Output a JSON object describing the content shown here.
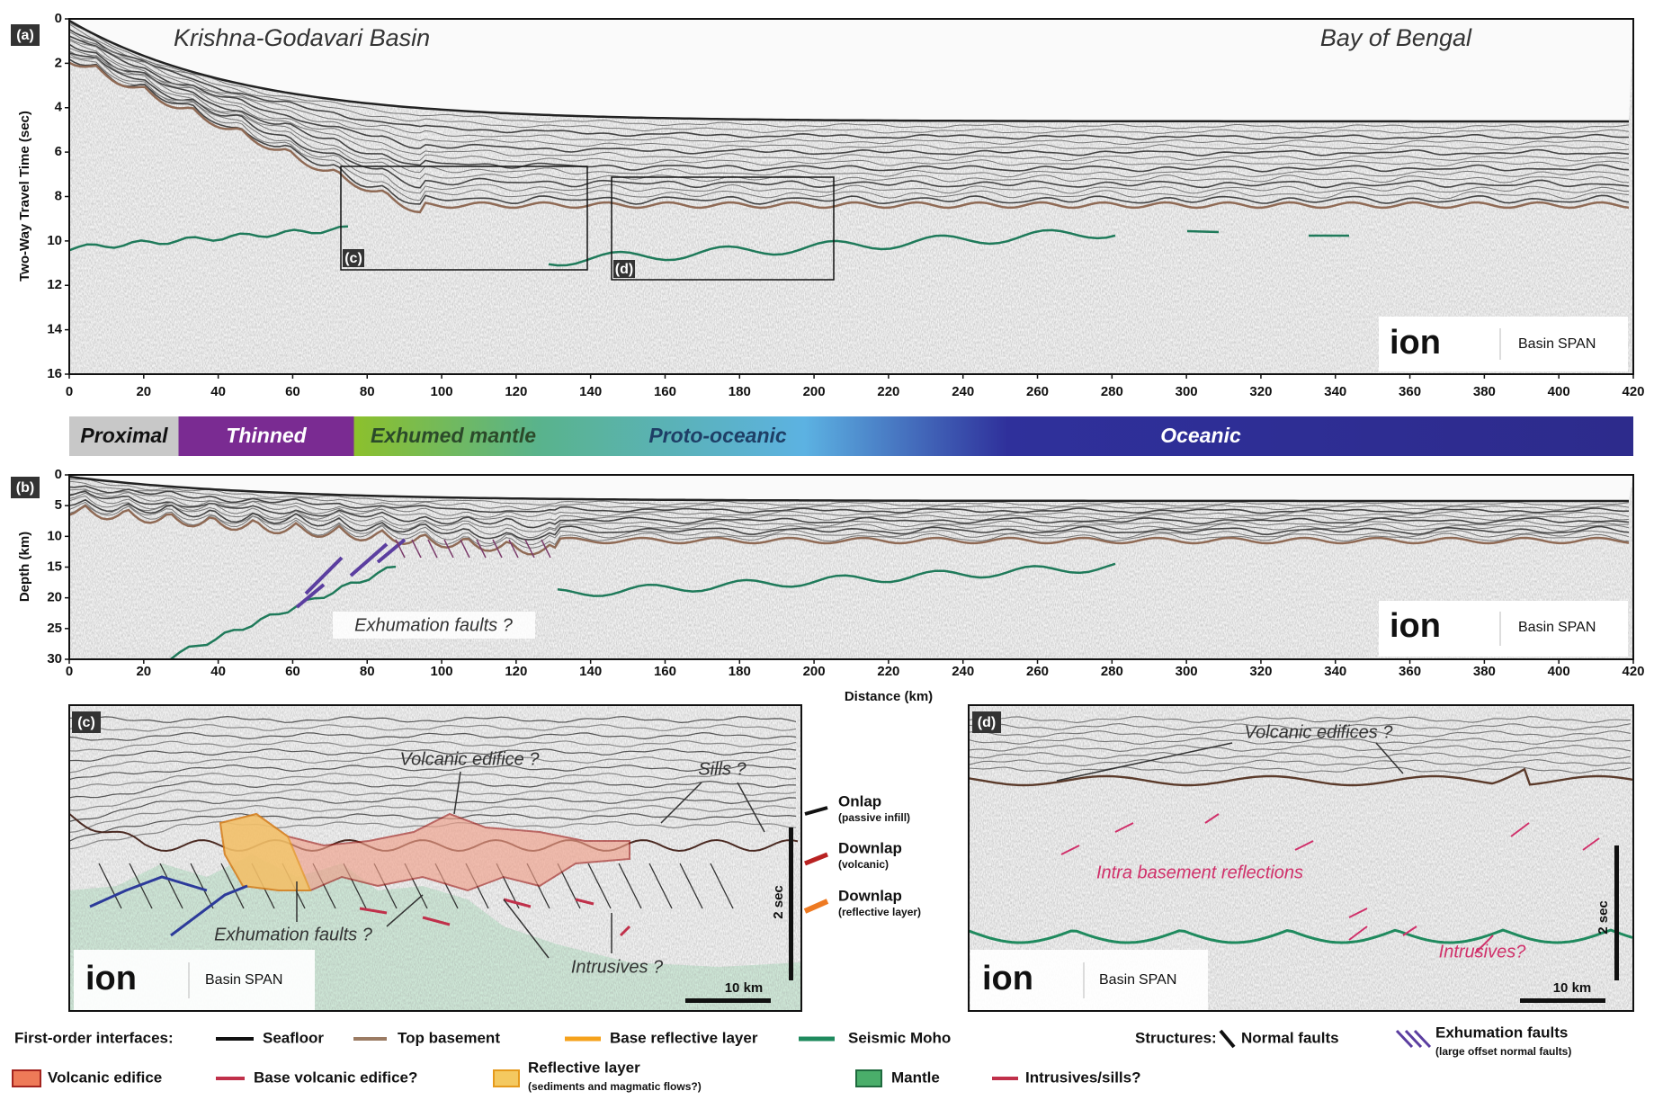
{
  "panel_a": {
    "label": "(a)",
    "left_title": "Krishna-Godavari Basin",
    "right_title": "Bay of Bengal",
    "y_axis_label": "Two-Way Travel Time (sec)",
    "y_ticks": [
      0,
      2,
      4,
      6,
      8,
      10,
      12,
      14,
      16
    ],
    "x_ticks": [
      0,
      20,
      40,
      60,
      80,
      100,
      120,
      140,
      160,
      180,
      200,
      220,
      240,
      260,
      280,
      300,
      320,
      340,
      360,
      380,
      400,
      420
    ],
    "inset_c": "(c)",
    "inset_d": "(d)",
    "logo": {
      "ion": "ion",
      "basin": "Basin",
      "span": "SPAN"
    }
  },
  "domains": [
    "Proximal",
    "Thinned",
    "Exhumed mantle",
    "Proto-oceanic",
    "Oceanic"
  ],
  "panel_b": {
    "label": "(b)",
    "y_axis_label": "Depth (km)",
    "y_ticks": [
      0,
      5,
      10,
      15,
      20,
      25,
      30
    ],
    "x_ticks": [
      0,
      20,
      40,
      60,
      80,
      100,
      120,
      140,
      160,
      180,
      200,
      220,
      240,
      260,
      280,
      300,
      320,
      340,
      360,
      380,
      400,
      420
    ],
    "x_axis_label": "Distance (km)",
    "annotation": "Exhumation faults ?",
    "logo": {
      "ion": "ion",
      "basin": "Basin",
      "span": "SPAN"
    }
  },
  "panel_c": {
    "label": "(c)",
    "annotations": [
      "Volcanic edifice ?",
      "Sills ?",
      "Exhumation faults ?",
      "Intrusives ?"
    ],
    "scale_h": "10 km",
    "scale_v": "2 sec",
    "logo": {
      "ion": "ion",
      "basin": "Basin",
      "span": "SPAN"
    }
  },
  "kinematic_notes": [
    {
      "title": "Onlap",
      "detail": "(passive infill)"
    },
    {
      "title": "Downlap",
      "detail": "(volcanic)"
    },
    {
      "title": "Downlap",
      "detail": "(reflective layer)"
    }
  ],
  "panel_d": {
    "label": "(d)",
    "annotations": [
      "Volcanic edifices ?",
      "Intra basement reflections",
      "Intrusives?"
    ],
    "scale_h": "10 km",
    "scale_v": "2 sec",
    "logo": {
      "ion": "ion",
      "basin": "Basin",
      "span": "SPAN"
    }
  },
  "legend": {
    "interfaces_heading": "First-order interfaces:",
    "interfaces": [
      "Seafloor",
      "Top basement",
      "Base reflective layer",
      "Seismic Moho"
    ],
    "structures_heading": "Structures:",
    "normal_faults": "Normal faults",
    "exhumation_faults": "Exhumation faults",
    "exhumation_faults_note": "(large offset normal faults)",
    "units": [
      "Volcanic edifice",
      "Base volcanic edifice?",
      "Reflective layer",
      "Mantle",
      "Intrusives/sills?"
    ],
    "reflective_layer_note": "(sediments and magmatic flows?)"
  }
}
